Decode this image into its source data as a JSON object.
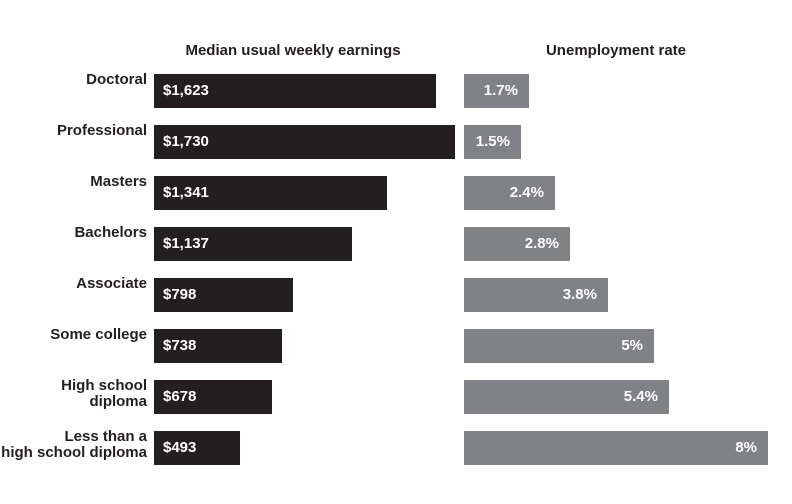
{
  "chart_data": {
    "type": "bar",
    "orientation": "horizontal",
    "titles": {
      "earnings": "Median usual weekly earnings",
      "unemployment": "Unemployment rate"
    },
    "categories": [
      "Doctoral",
      "Professional",
      "Masters",
      "Bachelors",
      "Associate",
      "Some college",
      "High school diploma",
      "Less than a high school diploma"
    ],
    "series": [
      {
        "name": "Median usual weekly earnings",
        "unit": "dollars per week",
        "color": "#231f20",
        "values": [
          1623,
          1730,
          1341,
          1137,
          798,
          738,
          678,
          493
        ]
      },
      {
        "name": "Unemployment rate",
        "unit": "percent",
        "color": "#808285",
        "values": [
          1.7,
          1.5,
          2.4,
          2.8,
          3.8,
          5,
          5.4,
          8
        ]
      }
    ],
    "earnings_axis_max": 1730,
    "rate_axis_max": 8,
    "legend": "none",
    "grid": false,
    "colors": {
      "earnings_bar": "#231f20",
      "rate_bar": "#808285",
      "label_text": "#231f20",
      "value_text": "#ffffff",
      "background": "#ffffff"
    },
    "rows": [
      {
        "label_lines": [
          "Doctoral"
        ],
        "earnings": 1623,
        "earnings_label": "$1,623",
        "rate": 1.7,
        "rate_label": "1.7%"
      },
      {
        "label_lines": [
          "Professional"
        ],
        "earnings": 1730,
        "earnings_label": "$1,730",
        "rate": 1.5,
        "rate_label": "1.5%"
      },
      {
        "label_lines": [
          "Masters"
        ],
        "earnings": 1341,
        "earnings_label": "$1,341",
        "rate": 2.4,
        "rate_label": "2.4%"
      },
      {
        "label_lines": [
          "Bachelors"
        ],
        "earnings": 1137,
        "earnings_label": "$1,137",
        "rate": 2.8,
        "rate_label": "2.8%"
      },
      {
        "label_lines": [
          "Associate"
        ],
        "earnings": 798,
        "earnings_label": "$798",
        "rate": 3.8,
        "rate_label": "3.8%"
      },
      {
        "label_lines": [
          "Some college"
        ],
        "earnings": 738,
        "earnings_label": "$738",
        "rate": 5,
        "rate_label": "5%"
      },
      {
        "label_lines": [
          "High school",
          "diploma"
        ],
        "earnings": 678,
        "earnings_label": "$678",
        "rate": 5.4,
        "rate_label": "5.4%"
      },
      {
        "label_lines": [
          "Less than a",
          "high school diploma"
        ],
        "earnings": 493,
        "earnings_label": "$493",
        "rate": 8,
        "rate_label": "8%"
      }
    ]
  }
}
